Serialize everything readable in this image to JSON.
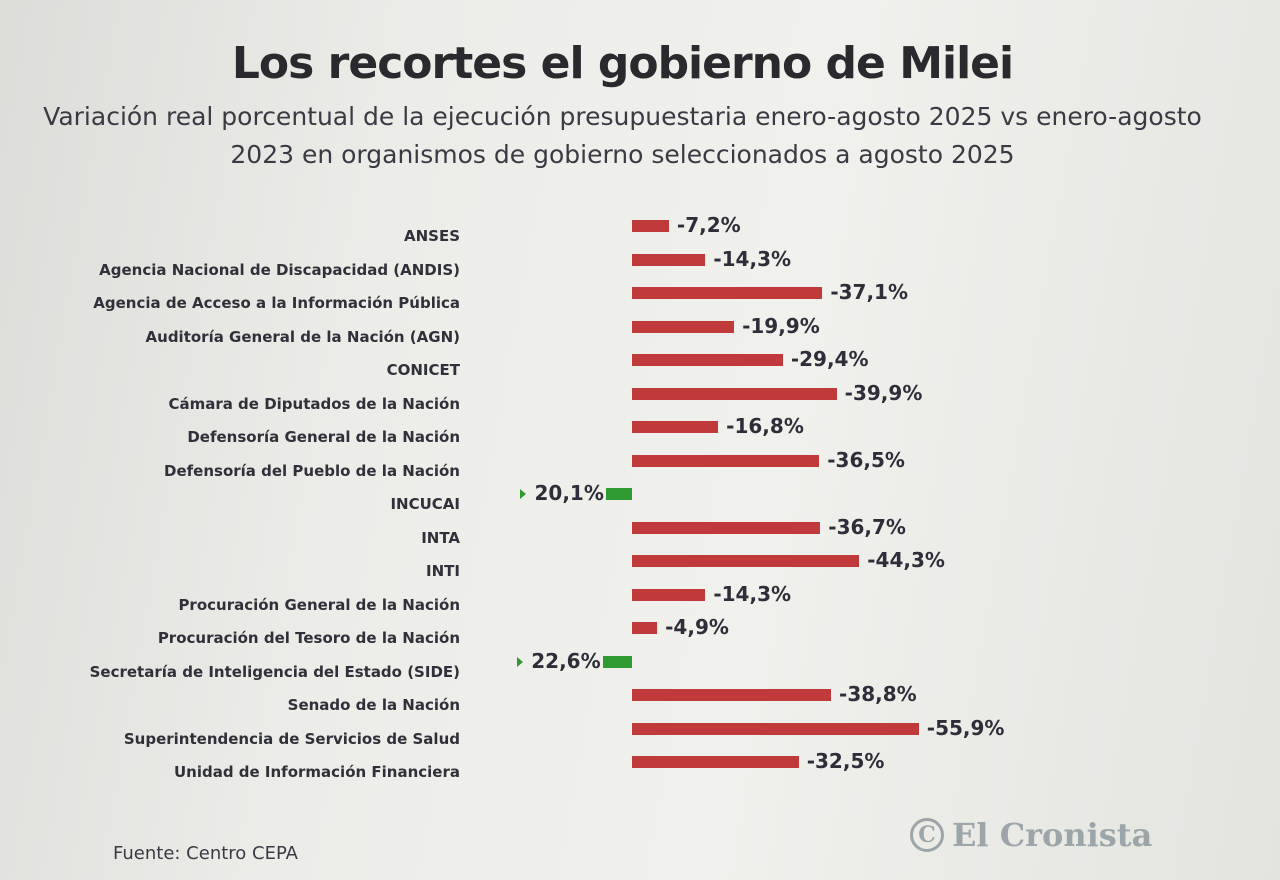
{
  "chart_data": {
    "type": "bar",
    "orientation": "horizontal",
    "title": "Los recortes el gobierno de Milei",
    "subtitle": "Variación real porcentual de la ejecución presupuestaria enero-agosto 2025 vs enero-agosto 2023 en organismos de gobierno seleccionados a agosto 2025",
    "categories": [
      "ANSES",
      "Agencia Nacional de Discapacidad (ANDIS)",
      "Agencia de Acceso a la Información Pública",
      "Auditoría General de la Nación (AGN)",
      "CONICET",
      "Cámara de Diputados de la Nación",
      "Defensoría General de la Nación",
      "Defensoría del Pueblo de la Nación",
      "INCUCAI",
      "INTA",
      "INTI",
      "Procuración General de la Nación",
      "Procuración del Tesoro de la Nación",
      "Secretaría de Inteligencia del Estado (SIDE)",
      "Senado de la Nación",
      "Superintendencia de Servicios de Salud",
      "Unidad de Información Financiera"
    ],
    "values": [
      -7.2,
      -14.3,
      -37.1,
      -19.9,
      -29.4,
      -39.9,
      -16.8,
      -36.5,
      20.1,
      -36.7,
      -44.3,
      -14.3,
      -4.9,
      22.6,
      -38.8,
      -55.9,
      -32.5
    ],
    "labels": [
      "-7,2%",
      "-14,3%",
      "-37,1%",
      "-19,9%",
      "-29,4%",
      "-39,9%",
      "-16,8%",
      "-36,5%",
      "20,1%",
      "-36,7%",
      "-44,3%",
      "-14,3%",
      "-4,9%",
      "22,6%",
      "-38,8%",
      "-55,9%",
      "-32,5%"
    ],
    "colors": {
      "negative": "#c0393b",
      "positive": "#2f9a2f"
    },
    "grid": false,
    "legend": "none"
  },
  "source": "Fuente: Centro CEPA",
  "logo": {
    "text": "El Cronista",
    "mark": "C"
  }
}
